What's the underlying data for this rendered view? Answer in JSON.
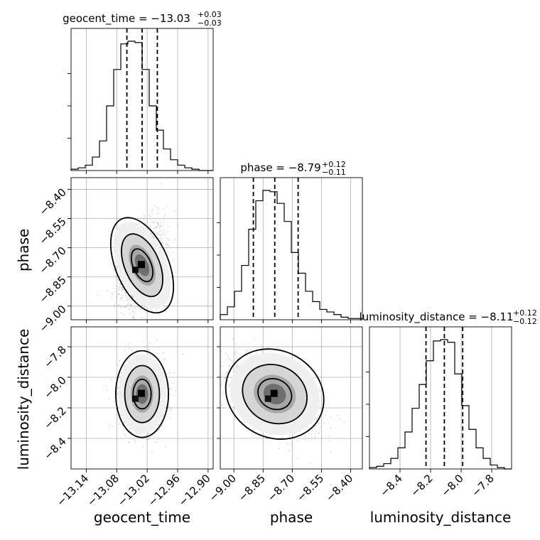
{
  "chart_data": {
    "type": "corner",
    "parameters": [
      "geocent_time",
      "phase",
      "luminosity_distance"
    ],
    "titles": [
      {
        "main": "geocent_time = −13.03",
        "sup": "+0.03",
        "sub": "−0.03"
      },
      {
        "main": "phase = −8.79",
        "sup": "+0.12",
        "sub": "−0.11"
      },
      {
        "main": "luminosity_distance = −8.11",
        "sup": "+0.12",
        "sub": "−0.12"
      }
    ],
    "grid": true,
    "axes": {
      "geocent_time": {
        "range": [
          -13.17,
          -12.89
        ],
        "ticks": [
          -13.14,
          -13.08,
          -13.02,
          -12.96,
          -12.9
        ],
        "tick_labels": [
          "−13.14",
          "−13.08",
          "−13.02",
          "−12.96",
          "−12.90"
        ]
      },
      "phase": {
        "range": [
          -9.07,
          -8.34
        ],
        "ticks": [
          -9.0,
          -8.85,
          -8.7,
          -8.55,
          -8.4
        ],
        "tick_labels": [
          "−9.00",
          "−8.85",
          "−8.70",
          "−8.55",
          "−8.40"
        ]
      },
      "luminosity_distance": {
        "range": [
          -8.6,
          -7.67
        ],
        "ticks": [
          -8.4,
          -8.2,
          -8.0,
          -7.8
        ],
        "tick_labels": [
          "−8.4",
          "−8.2",
          "−8.0",
          "−7.8"
        ]
      }
    },
    "histograms": [
      {
        "param": "geocent_time",
        "bin_edges": [
          -13.17,
          -13.156,
          -13.142,
          -13.128,
          -13.114,
          -13.1,
          -13.086,
          -13.072,
          -13.058,
          -13.044,
          -13.03,
          -13.016,
          -13.002,
          -12.988,
          -12.974,
          -12.96,
          -12.946,
          -12.932,
          -12.918,
          -12.904,
          -12.89
        ],
        "counts": [
          1,
          2,
          4,
          10,
          22,
          48,
          75,
          94,
          96,
          95,
          75,
          48,
          30,
          16,
          8,
          4,
          2,
          1,
          0,
          0
        ],
        "quantiles": [
          -13.06,
          -13.03,
          -13.0
        ]
      },
      {
        "param": "phase",
        "bin_edges": [
          -9.07,
          -9.0335,
          -8.997,
          -8.9605,
          -8.924,
          -8.8875,
          -8.851,
          -8.8145,
          -8.778,
          -8.7415,
          -8.705,
          -8.6685,
          -8.632,
          -8.5955,
          -8.559,
          -8.5225,
          -8.486,
          -8.4495,
          -8.413,
          -8.3765,
          -8.34
        ],
        "counts": [
          4,
          10,
          22,
          42,
          70,
          92,
          100,
          99,
          90,
          76,
          52,
          36,
          22,
          14,
          8,
          6,
          4,
          2,
          1,
          1
        ],
        "quantiles": [
          -8.9,
          -8.79,
          -8.67
        ]
      },
      {
        "param": "luminosity_distance",
        "bin_edges": [
          -8.6,
          -8.5535,
          -8.507,
          -8.4605,
          -8.414,
          -8.3675,
          -8.321,
          -8.2745,
          -8.228,
          -8.1815,
          -8.135,
          -8.0885,
          -8.042,
          -7.9955,
          -7.949,
          -7.9025,
          -7.856,
          -7.8095,
          -7.763,
          -7.7165,
          -7.67
        ],
        "counts": [
          1,
          2,
          4,
          8,
          16,
          28,
          46,
          64,
          82,
          97,
          98,
          96,
          72,
          48,
          30,
          16,
          8,
          3,
          1,
          0
        ],
        "quantiles": [
          -8.23,
          -8.11,
          -7.99
        ]
      }
    ],
    "pairs": [
      {
        "x": "geocent_time",
        "y": "phase",
        "center": [
          -13.03,
          -8.79
        ],
        "sigma": [
          0.022,
          0.11
        ],
        "rho": 0.45
      },
      {
        "x": "geocent_time",
        "y": "luminosity_distance",
        "center": [
          -13.03,
          -8.11
        ],
        "sigma": [
          0.022,
          0.12
        ],
        "rho": 0.0
      },
      {
        "x": "phase",
        "y": "luminosity_distance",
        "center": [
          -8.79,
          -8.11
        ],
        "sigma": [
          0.11,
          0.12
        ],
        "rho": -0.55
      }
    ]
  }
}
